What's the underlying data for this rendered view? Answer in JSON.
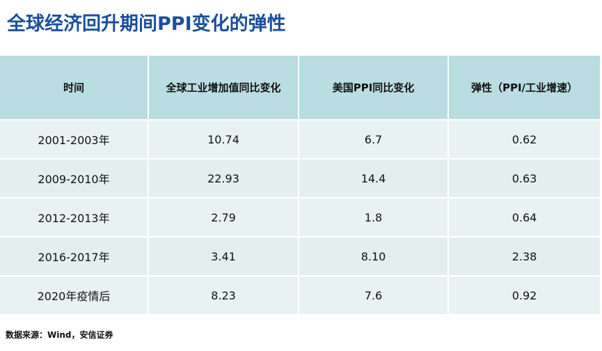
{
  "header": {
    "title": "全球经济回升期间PPI变化的弹性"
  },
  "table": {
    "columns": [
      "时间",
      "全球工业增加值同比变化",
      "美国PPI同比变化",
      "弹性（PPI/工业增速）"
    ],
    "rows": [
      [
        "2001-2003年",
        "10.74",
        "6.7",
        "0.62"
      ],
      [
        "2009-2010年",
        "22.93",
        "14.4",
        "0.63"
      ],
      [
        "2012-2013年",
        "2.79",
        "1.8",
        "0.64"
      ],
      [
        "2016-2017年",
        "3.41",
        "8.10",
        "2.38"
      ],
      [
        "2020年疫情后",
        "8.23",
        "7.6",
        "0.92"
      ]
    ]
  },
  "footer": {
    "source": "数据来源：Wind，安信证券"
  }
}
